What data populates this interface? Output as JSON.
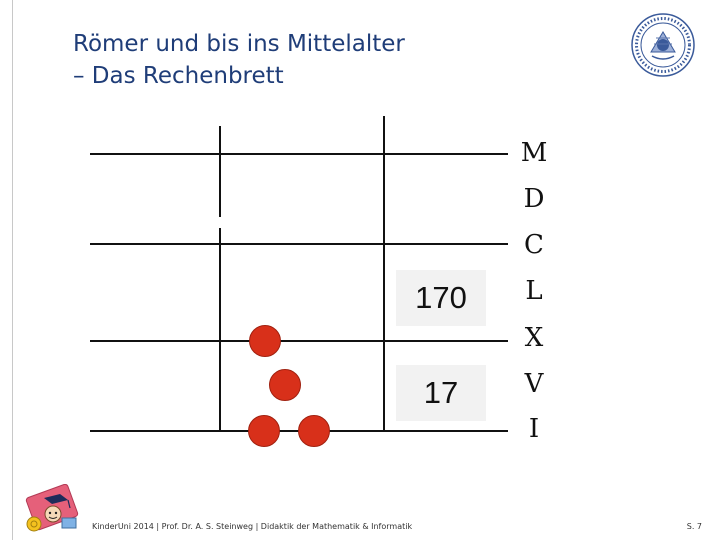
{
  "slide": {
    "title_line1": "Römer und bis ins Mittelalter",
    "title_line2": "– Das Rechenbrett"
  },
  "board": {
    "numbers": [
      "170",
      "17"
    ],
    "roman_labels": [
      "M",
      "D",
      "C",
      "L",
      "X",
      "V",
      "I"
    ],
    "bead_color": "#d8301a"
  },
  "footer": {
    "text": "KinderUni 2014 | Prof. Dr. A. S. Steinweg | Didaktik der Mathematik & Informatik",
    "page": "S. 7"
  },
  "colors": {
    "title": "#1f3d78",
    "seal": "#3a5a9a"
  },
  "icons": {
    "seal": "university-seal",
    "logo": "kinderuni-mascot-logo"
  }
}
